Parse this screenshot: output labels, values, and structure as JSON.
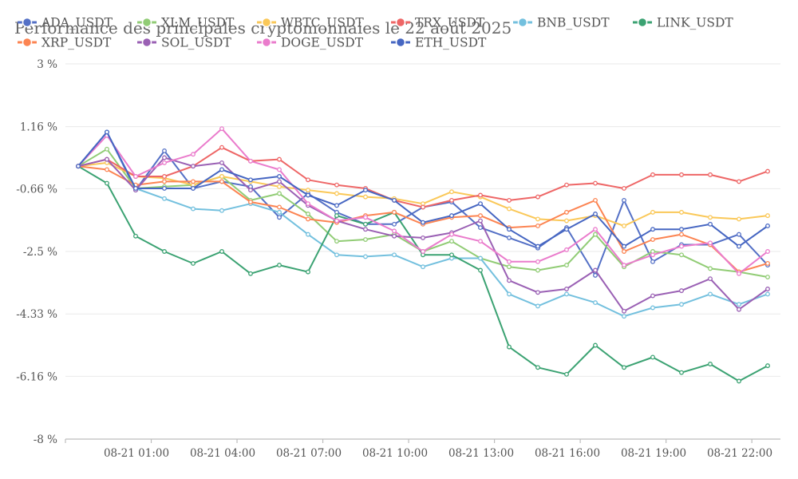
{
  "chart_data": {
    "type": "line",
    "title": "Performance des principales cryptomonnaies le 22 août 2025",
    "xlabel": "",
    "ylabel": "",
    "ylim": [
      -8,
      3
    ],
    "yticks": [
      3,
      1.16,
      -0.66,
      -2.5,
      -4.33,
      -6.16,
      -8
    ],
    "ytick_labels": [
      "3 %",
      "1.16 %",
      "-0.66 %",
      "-2.5 %",
      "-4.33 %",
      "-6.16 %",
      "-8 %"
    ],
    "x": [
      "08-21 00:00",
      "08-21 01:00",
      "08-21 02:00",
      "08-21 03:00",
      "08-21 04:00",
      "08-21 05:00",
      "08-21 06:00",
      "08-21 07:00",
      "08-21 08:00",
      "08-21 09:00",
      "08-21 10:00",
      "08-21 11:00",
      "08-21 12:00",
      "08-21 13:00",
      "08-21 14:00",
      "08-21 15:00",
      "08-21 16:00",
      "08-21 17:00",
      "08-21 18:00",
      "08-21 19:00",
      "08-21 20:00",
      "08-21 21:00",
      "08-21 22:00",
      "08-21 23:00",
      "08-22 00:00"
    ],
    "xtick_labels": [
      "08-21 01:00",
      "08-21 04:00",
      "08-21 07:00",
      "08-21 10:00",
      "08-21 13:00",
      "08-21 16:00",
      "08-21 19:00",
      "08-21 22:00"
    ],
    "grid": true,
    "legend_position": "top",
    "series": [
      {
        "name": "ADA_USDT",
        "color": "#5470c6",
        "values": [
          0,
          1.0,
          -0.7,
          0.45,
          -0.65,
          -0.45,
          -0.6,
          -1.5,
          -0.8,
          -1.35,
          -1.7,
          -1.7,
          -1.2,
          -1.05,
          -1.8,
          -2.1,
          -2.4,
          -1.8,
          -3.2,
          -1.0,
          -2.8,
          -2.3,
          -2.3,
          -2.0,
          -2.9
        ]
      },
      {
        "name": "XLM_USDT",
        "color": "#91cc75",
        "values": [
          0,
          0.5,
          -0.65,
          -0.6,
          -0.55,
          -0.3,
          -1.0,
          -0.8,
          -1.4,
          -2.2,
          -2.15,
          -2.0,
          -2.5,
          -2.2,
          -2.7,
          -2.95,
          -3.05,
          -2.9,
          -2.0,
          -2.95,
          -2.5,
          -2.6,
          -3.0,
          -3.1,
          -3.25
        ]
      },
      {
        "name": "WBTC_USDT",
        "color": "#fac858",
        "values": [
          0,
          0.1,
          -0.3,
          -0.35,
          -0.55,
          -0.3,
          -0.45,
          -0.6,
          -0.7,
          -0.8,
          -0.9,
          -0.95,
          -1.1,
          -0.75,
          -0.9,
          -1.25,
          -1.55,
          -1.6,
          -1.45,
          -1.75,
          -1.35,
          -1.35,
          -1.5,
          -1.55,
          -1.45
        ]
      },
      {
        "name": "TRX_USDT",
        "color": "#ee6666",
        "values": [
          0,
          0.2,
          -0.3,
          -0.3,
          0,
          0.55,
          0.15,
          0.2,
          -0.4,
          -0.55,
          -0.65,
          -1.0,
          -1.2,
          -1.0,
          -0.85,
          -1.0,
          -0.9,
          -0.55,
          -0.5,
          -0.65,
          -0.25,
          -0.25,
          -0.25,
          -0.45,
          -0.15
        ]
      },
      {
        "name": "BNB_USDT",
        "color": "#73c0de",
        "values": [
          0,
          1.0,
          -0.65,
          -0.95,
          -1.25,
          -1.3,
          -1.1,
          -1.35,
          -2.0,
          -2.6,
          -2.65,
          -2.6,
          -2.95,
          -2.7,
          -2.7,
          -3.75,
          -4.1,
          -3.75,
          -4.0,
          -4.4,
          -4.15,
          -4.05,
          -3.75,
          -4.05,
          -3.75
        ]
      },
      {
        "name": "LINK_USDT",
        "color": "#3ba272",
        "values": [
          0,
          -0.5,
          -2.05,
          -2.5,
          -2.85,
          -2.5,
          -3.15,
          -2.9,
          -3.1,
          -1.45,
          -1.7,
          -1.35,
          -2.6,
          -2.6,
          -3.05,
          -5.3,
          -5.9,
          -6.1,
          -5.25,
          -5.9,
          -5.6,
          -6.05,
          -5.8,
          -6.3,
          -5.85
        ]
      },
      {
        "name": "XRP_USDT",
        "color": "#fc8452",
        "values": [
          0,
          -0.1,
          -0.55,
          -0.45,
          -0.45,
          -0.45,
          -1.05,
          -1.2,
          -1.55,
          -1.65,
          -1.45,
          -1.35,
          -1.7,
          -1.5,
          -1.45,
          -1.8,
          -1.75,
          -1.35,
          -1.0,
          -2.5,
          -2.15,
          -2.0,
          -2.3,
          -3.1,
          -2.85
        ]
      },
      {
        "name": "SOL_USDT",
        "color": "#9a60b4",
        "values": [
          0,
          0.2,
          -0.7,
          0.25,
          0,
          0.1,
          -0.7,
          -0.45,
          -1.15,
          -1.6,
          -1.85,
          -2.05,
          -2.1,
          -1.95,
          -1.6,
          -3.35,
          -3.7,
          -3.6,
          -3.05,
          -4.25,
          -3.8,
          -3.65,
          -3.3,
          -4.2,
          -3.6
        ]
      },
      {
        "name": "DOGE_USDT",
        "color": "#ea7ccc",
        "values": [
          0,
          0.9,
          -0.3,
          0.1,
          0.35,
          1.1,
          0.15,
          -0.1,
          -1.1,
          -1.6,
          -1.5,
          -1.9,
          -2.5,
          -2.0,
          -2.2,
          -2.8,
          -2.8,
          -2.45,
          -1.85,
          -2.9,
          -2.6,
          -2.35,
          -2.25,
          -3.15,
          -2.5
        ]
      },
      {
        "name": "ETH_USDT",
        "color": "#4666c2",
        "values": [
          0,
          1.0,
          -0.65,
          -0.65,
          -0.65,
          -0.1,
          -0.4,
          -0.3,
          -0.85,
          -1.15,
          -0.7,
          -1.0,
          -1.65,
          -1.45,
          -1.1,
          -1.85,
          -2.35,
          -1.85,
          -1.4,
          -2.35,
          -1.85,
          -1.85,
          -1.7,
          -2.35,
          -1.75
        ]
      }
    ]
  }
}
